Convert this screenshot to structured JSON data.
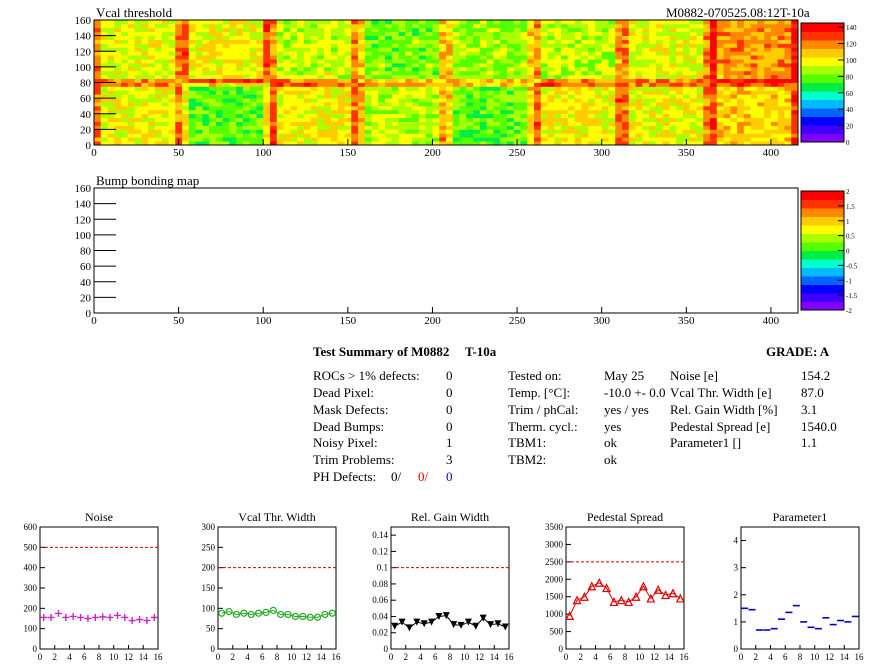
{
  "header": {
    "module_id": "M0882-070525.08:12T-10a"
  },
  "chart_data": [
    {
      "type": "heatmap",
      "title": "Vcal threshold",
      "x_ticks": [
        0,
        50,
        100,
        150,
        200,
        250,
        300,
        350,
        400
      ],
      "y_ticks": [
        0,
        20,
        40,
        60,
        80,
        100,
        120,
        140,
        160
      ],
      "xlim": [
        0,
        416
      ],
      "ylim": [
        0,
        160
      ],
      "z_ticks": [
        0,
        20,
        40,
        60,
        80,
        100,
        120,
        140
      ],
      "zlim": [
        0,
        145
      ],
      "roc_grid": {
        "cols": 8,
        "rows": 2,
        "roc_width": 52,
        "roc_height": 80
      },
      "roc_mean_threshold": {
        "top": [
          95,
          100,
          92,
          82,
          85,
          90,
          95,
          115
        ],
        "bottom": [
          98,
          78,
          100,
          90,
          80,
          100,
          98,
          105
        ]
      },
      "color_scale": [
        "#7f00ff",
        "#3f00ff",
        "#0000ff",
        "#0066ff",
        "#00bbff",
        "#00ffcc",
        "#00ee44",
        "#55ff00",
        "#aaff00",
        "#ffff00",
        "#ffcc00",
        "#ff8800",
        "#ff3300",
        "#ff0000"
      ]
    },
    {
      "type": "heatmap",
      "title": "Bump bonding map",
      "x_ticks": [
        0,
        50,
        100,
        150,
        200,
        250,
        300,
        350,
        400
      ],
      "y_ticks": [
        0,
        20,
        40,
        60,
        80,
        100,
        120,
        140,
        160
      ],
      "xlim": [
        0,
        416
      ],
      "ylim": [
        0,
        160
      ],
      "z_ticks": [
        -2,
        -1.5,
        -1,
        -0.5,
        0,
        0.5,
        1,
        1.5,
        2
      ],
      "zlim": [
        -2,
        2
      ],
      "values": []
    },
    {
      "type": "scatter",
      "title": "Noise",
      "x": [
        0,
        1,
        2,
        3,
        4,
        5,
        6,
        7,
        8,
        9,
        10,
        11,
        12,
        13,
        14,
        15
      ],
      "y": [
        155,
        155,
        175,
        155,
        160,
        155,
        150,
        155,
        158,
        155,
        165,
        155,
        140,
        145,
        140,
        155
      ],
      "xlim": [
        0,
        16
      ],
      "ylim": [
        0,
        600
      ],
      "y_ticks": [
        0,
        100,
        200,
        300,
        400,
        500,
        600
      ],
      "x_ticks": [
        0,
        2,
        4,
        6,
        8,
        10,
        12,
        14,
        16
      ],
      "threshold": 500,
      "marker": "plus",
      "color": "#cc22cc",
      "connect": false
    },
    {
      "type": "line",
      "title": "Vcal Thr. Width",
      "x": [
        0,
        1,
        2,
        3,
        4,
        5,
        6,
        7,
        8,
        9,
        10,
        11,
        12,
        13,
        14,
        15
      ],
      "y": [
        88,
        92,
        85,
        88,
        85,
        88,
        90,
        95,
        85,
        85,
        80,
        80,
        78,
        78,
        85,
        88
      ],
      "xlim": [
        0,
        16
      ],
      "ylim": [
        0,
        300
      ],
      "y_ticks": [
        0,
        50,
        100,
        150,
        200,
        250,
        300
      ],
      "x_ticks": [
        0,
        2,
        4,
        6,
        8,
        10,
        12,
        14,
        16
      ],
      "threshold": 200,
      "marker": "circle",
      "color": "#22aa22",
      "connect": true
    },
    {
      "type": "line",
      "title": "Rel. Gain Width",
      "x": [
        0,
        1,
        2,
        3,
        4,
        5,
        6,
        7,
        8,
        9,
        10,
        11,
        12,
        13,
        14,
        15
      ],
      "y": [
        0.028,
        0.033,
        0.026,
        0.033,
        0.031,
        0.033,
        0.04,
        0.041,
        0.03,
        0.029,
        0.033,
        0.028,
        0.038,
        0.03,
        0.031,
        0.027
      ],
      "xlim": [
        0,
        16
      ],
      "ylim": [
        0,
        0.15
      ],
      "y_ticks": [
        0,
        0.02,
        0.04,
        0.06,
        0.08,
        0.1,
        0.12,
        0.14
      ],
      "x_ticks": [
        0,
        2,
        4,
        6,
        8,
        10,
        12,
        14,
        16
      ],
      "threshold": 0.1,
      "marker": "triangle-down",
      "color": "#000000",
      "connect": true
    },
    {
      "type": "line",
      "title": "Pedestal Spread",
      "x": [
        0,
        1,
        2,
        3,
        4,
        5,
        6,
        7,
        8,
        9,
        10,
        11,
        12,
        13,
        14,
        15
      ],
      "y": [
        950,
        1400,
        1500,
        1800,
        1900,
        1750,
        1350,
        1400,
        1350,
        1500,
        1800,
        1450,
        1700,
        1550,
        1600,
        1450
      ],
      "xlim": [
        0,
        16
      ],
      "ylim": [
        0,
        3500
      ],
      "y_ticks": [
        0,
        500,
        1000,
        1500,
        2000,
        2500,
        3000,
        3500
      ],
      "x_ticks": [
        0,
        2,
        4,
        6,
        8,
        10,
        12,
        14,
        16
      ],
      "threshold": 2500,
      "marker": "triangle-up",
      "color": "#dd0000",
      "connect": true
    },
    {
      "type": "scatter",
      "title": "Parameter1",
      "x": [
        0,
        1,
        2,
        3,
        4,
        5,
        6,
        7,
        8,
        9,
        10,
        11,
        12,
        13,
        14,
        15
      ],
      "y": [
        1.5,
        1.45,
        0.7,
        0.7,
        0.75,
        1.1,
        1.35,
        1.6,
        1.0,
        0.8,
        0.75,
        1.15,
        0.9,
        1.05,
        1.0,
        1.2
      ],
      "xlim": [
        0,
        16
      ],
      "ylim": [
        0,
        4.5
      ],
      "y_ticks": [
        0,
        1,
        2,
        3,
        4
      ],
      "x_ticks": [
        0,
        2,
        4,
        6,
        8,
        10,
        12,
        14,
        16
      ],
      "marker": "hbar",
      "color": "#0000cc",
      "connect": false
    }
  ],
  "summary": {
    "title": "Test Summary of M0882",
    "test_type": "T-10a",
    "grade_label": "GRADE:  A",
    "defects": [
      {
        "label": "ROCs > 1% defects:",
        "value": "0"
      },
      {
        "label": "Dead Pixel:",
        "value": "0"
      },
      {
        "label": "Mask Defects:",
        "value": "0"
      },
      {
        "label": "Dead Bumps:",
        "value": "0"
      },
      {
        "label": "Noisy Pixel:",
        "value": "1"
      },
      {
        "label": "Trim Problems:",
        "value": "3"
      }
    ],
    "ph_defects": {
      "label": "PH Defects:",
      "v1": "0/",
      "v2": "0/",
      "v3": "0"
    },
    "conditions": [
      {
        "label": "Tested on:",
        "value": "May 25"
      },
      {
        "label": "Temp. [°C]:",
        "value": "-10.0 +- 0.0"
      },
      {
        "label": "Trim / phCal:",
        "value": "yes / yes"
      },
      {
        "label": "Therm. cycl.:",
        "value": "yes"
      },
      {
        "label": "TBM1:",
        "value": "ok"
      },
      {
        "label": "TBM2:",
        "value": "ok"
      }
    ],
    "performance": [
      {
        "label": "Noise [e]",
        "value": "154.2"
      },
      {
        "label": "Vcal Thr. Width [e]",
        "value": "87.0"
      },
      {
        "label": "Rel. Gain Width [%]",
        "value": "3.1"
      },
      {
        "label": "Pedestal Spread [e]",
        "value": "1540.0"
      },
      {
        "label": "Parameter1 []",
        "value": "1.1"
      }
    ]
  }
}
